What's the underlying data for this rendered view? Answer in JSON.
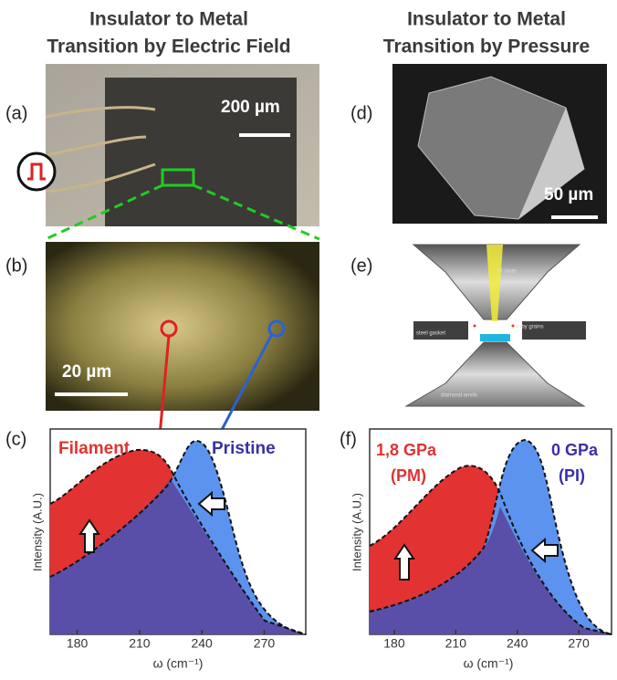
{
  "headers": [
    {
      "line1": "Insulator to Metal",
      "line2": "Transition by Electric Field"
    },
    {
      "line1": "Insulator to Metal",
      "line2": "Transition by Pressure"
    }
  ],
  "panels": {
    "a": {
      "label": "(a)",
      "scale": "200 µm"
    },
    "b": {
      "label": "(b)",
      "scale": "20 µm"
    },
    "c": {
      "label": "(c)",
      "ylabel": "Intensity (A.U.)",
      "xlabel": "ω (cm⁻¹)",
      "xlim": [
        167,
        290
      ],
      "xticks": [
        180,
        210,
        240,
        270
      ],
      "annotations": [
        "Filament",
        "Pristine"
      ]
    },
    "d": {
      "label": "(d)",
      "scale": "50 µm"
    },
    "e": {
      "label": "(e)",
      "labels": [
        "IR laser",
        "ruby grains",
        "steel gasket",
        "diamond anvils"
      ]
    },
    "f": {
      "label": "(f)",
      "ylabel": "Intensity (A.U.)",
      "xlabel": "ω (cm⁻¹)",
      "xlim": [
        168,
        286
      ],
      "xticks": [
        180,
        210,
        240,
        270
      ],
      "annotations": [
        "1,8 GPa",
        "(PM)",
        "0 GPa",
        "(PI)"
      ]
    }
  }
}
